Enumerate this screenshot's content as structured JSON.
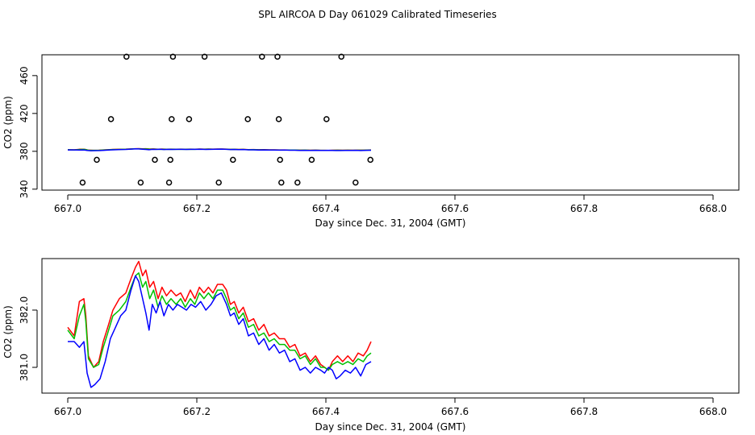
{
  "title": "SPL AIRCOA D  Day 061029  Calibrated Timeseries",
  "chart_data": [
    {
      "type": "scatter+line",
      "xlabel": "Day since Dec. 31, 2004 (GMT)",
      "ylabel": "CO2 (ppm)",
      "xlim": [
        667.0,
        668.0
      ],
      "ylim": [
        339,
        482
      ],
      "xticks": [
        667.0,
        667.2,
        667.4,
        667.6,
        667.8,
        668.0
      ],
      "xtick_labels": [
        "667.0",
        "667.2",
        "667.4",
        "667.6",
        "667.8",
        "668.0"
      ],
      "yticks": [
        340,
        380,
        420,
        460
      ],
      "ytick_labels": [
        "340",
        "380",
        "420",
        "460"
      ],
      "scatter_points": [
        {
          "x": 667.091,
          "y": 480
        },
        {
          "x": 667.163,
          "y": 480
        },
        {
          "x": 667.212,
          "y": 480
        },
        {
          "x": 667.301,
          "y": 480
        },
        {
          "x": 667.325,
          "y": 480
        },
        {
          "x": 667.424,
          "y": 480
        },
        {
          "x": 667.067,
          "y": 414
        },
        {
          "x": 667.161,
          "y": 414
        },
        {
          "x": 667.188,
          "y": 414
        },
        {
          "x": 667.279,
          "y": 414
        },
        {
          "x": 667.327,
          "y": 414
        },
        {
          "x": 667.401,
          "y": 414
        },
        {
          "x": 667.045,
          "y": 371
        },
        {
          "x": 667.135,
          "y": 371
        },
        {
          "x": 667.159,
          "y": 371
        },
        {
          "x": 667.256,
          "y": 371
        },
        {
          "x": 667.329,
          "y": 371
        },
        {
          "x": 667.378,
          "y": 371
        },
        {
          "x": 667.469,
          "y": 371
        },
        {
          "x": 667.023,
          "y": 347
        },
        {
          "x": 667.113,
          "y": 347
        },
        {
          "x": 667.157,
          "y": 347
        },
        {
          "x": 667.234,
          "y": 347
        },
        {
          "x": 667.331,
          "y": 347
        },
        {
          "x": 667.356,
          "y": 347
        },
        {
          "x": 667.446,
          "y": 347
        }
      ],
      "series": [
        {
          "name": "red",
          "color": "#ff0000",
          "values": [
            [
              667.0,
              381.7
            ],
            [
              667.01,
              381.55
            ],
            [
              667.018,
              382.15
            ],
            [
              667.025,
              382.2
            ],
            [
              667.028,
              381.9
            ],
            [
              667.032,
              381.2
            ],
            [
              667.04,
              381.0
            ],
            [
              667.048,
              381.1
            ],
            [
              667.055,
              381.45
            ],
            [
              667.062,
              381.7
            ],
            [
              667.07,
              382.0
            ],
            [
              667.08,
              382.2
            ],
            [
              667.09,
              382.3
            ],
            [
              667.098,
              382.55
            ],
            [
              667.105,
              382.75
            ],
            [
              667.11,
              382.85
            ],
            [
              667.116,
              382.6
            ],
            [
              667.121,
              382.7
            ],
            [
              667.127,
              382.4
            ],
            [
              667.133,
              382.5
            ],
            [
              667.14,
              382.2
            ],
            [
              667.146,
              382.4
            ],
            [
              667.153,
              382.25
            ],
            [
              667.16,
              382.35
            ],
            [
              667.168,
              382.25
            ],
            [
              667.175,
              382.3
            ],
            [
              667.182,
              382.15
            ],
            [
              667.19,
              382.35
            ],
            [
              667.197,
              382.2
            ],
            [
              667.204,
              382.4
            ],
            [
              667.211,
              382.3
            ],
            [
              667.218,
              382.4
            ],
            [
              667.225,
              382.3
            ],
            [
              667.232,
              382.45
            ],
            [
              667.24,
              382.45
            ],
            [
              667.246,
              382.35
            ],
            [
              667.252,
              382.1
            ],
            [
              667.258,
              382.15
            ],
            [
              667.265,
              381.95
            ],
            [
              667.272,
              382.05
            ],
            [
              667.28,
              381.8
            ],
            [
              667.288,
              381.85
            ],
            [
              667.296,
              381.65
            ],
            [
              667.304,
              381.75
            ],
            [
              667.312,
              381.55
            ],
            [
              667.32,
              381.6
            ],
            [
              667.328,
              381.5
            ],
            [
              667.336,
              381.5
            ],
            [
              667.344,
              381.35
            ],
            [
              667.352,
              381.4
            ],
            [
              667.36,
              381.2
            ],
            [
              667.368,
              381.25
            ],
            [
              667.376,
              381.1
            ],
            [
              667.384,
              381.2
            ],
            [
              667.392,
              381.05
            ],
            [
              667.398,
              381.0
            ],
            [
              667.404,
              380.95
            ],
            [
              667.41,
              381.1
            ],
            [
              667.418,
              381.2
            ],
            [
              667.426,
              381.1
            ],
            [
              667.434,
              381.2
            ],
            [
              667.442,
              381.1
            ],
            [
              667.45,
              381.25
            ],
            [
              667.458,
              381.2
            ],
            [
              667.464,
              381.3
            ],
            [
              667.47,
              381.45
            ]
          ]
        },
        {
          "name": "green",
          "color": "#00c000",
          "values": [
            [
              667.0,
              381.65
            ],
            [
              667.01,
              381.5
            ],
            [
              667.018,
              381.9
            ],
            [
              667.025,
              382.1
            ],
            [
              667.028,
              381.8
            ],
            [
              667.032,
              381.15
            ],
            [
              667.04,
              381.0
            ],
            [
              667.048,
              381.05
            ],
            [
              667.055,
              381.35
            ],
            [
              667.062,
              381.6
            ],
            [
              667.07,
              381.9
            ],
            [
              667.08,
              382.0
            ],
            [
              667.09,
              382.15
            ],
            [
              667.098,
              382.4
            ],
            [
              667.105,
              382.6
            ],
            [
              667.11,
              382.65
            ],
            [
              667.116,
              382.4
            ],
            [
              667.121,
              382.5
            ],
            [
              667.127,
              382.2
            ],
            [
              667.133,
              382.35
            ],
            [
              667.14,
              382.05
            ],
            [
              667.146,
              382.25
            ],
            [
              667.153,
              382.1
            ],
            [
              667.16,
              382.2
            ],
            [
              667.168,
              382.1
            ],
            [
              667.175,
              382.2
            ],
            [
              667.182,
              382.05
            ],
            [
              667.19,
              382.2
            ],
            [
              667.197,
              382.1
            ],
            [
              667.204,
              382.3
            ],
            [
              667.211,
              382.2
            ],
            [
              667.218,
              382.3
            ],
            [
              667.225,
              382.2
            ],
            [
              667.232,
              382.35
            ],
            [
              667.24,
              382.35
            ],
            [
              667.246,
              382.2
            ],
            [
              667.252,
              382.0
            ],
            [
              667.258,
              382.05
            ],
            [
              667.265,
              381.85
            ],
            [
              667.272,
              381.95
            ],
            [
              667.28,
              381.7
            ],
            [
              667.288,
              381.75
            ],
            [
              667.296,
              381.55
            ],
            [
              667.304,
              381.6
            ],
            [
              667.312,
              381.45
            ],
            [
              667.32,
              381.5
            ],
            [
              667.328,
              381.4
            ],
            [
              667.336,
              381.4
            ],
            [
              667.344,
              381.3
            ],
            [
              667.352,
              381.3
            ],
            [
              667.36,
              381.15
            ],
            [
              667.368,
              381.2
            ],
            [
              667.376,
              381.05
            ],
            [
              667.384,
              381.15
            ],
            [
              667.392,
              381.0
            ],
            [
              667.398,
              381.0
            ],
            [
              667.404,
              380.95
            ],
            [
              667.41,
              381.05
            ],
            [
              667.418,
              381.1
            ],
            [
              667.426,
              381.05
            ],
            [
              667.434,
              381.1
            ],
            [
              667.442,
              381.05
            ],
            [
              667.45,
              381.15
            ],
            [
              667.458,
              381.1
            ],
            [
              667.464,
              381.2
            ],
            [
              667.47,
              381.25
            ]
          ]
        },
        {
          "name": "blue",
          "color": "#0000ff",
          "values": [
            [
              667.0,
              381.45
            ],
            [
              667.01,
              381.45
            ],
            [
              667.018,
              381.35
            ],
            [
              667.025,
              381.45
            ],
            [
              667.03,
              380.9
            ],
            [
              667.036,
              380.65
            ],
            [
              667.042,
              380.7
            ],
            [
              667.05,
              380.8
            ],
            [
              667.058,
              381.1
            ],
            [
              667.066,
              381.5
            ],
            [
              667.074,
              381.7
            ],
            [
              667.082,
              381.9
            ],
            [
              667.09,
              382.0
            ],
            [
              667.098,
              382.35
            ],
            [
              667.105,
              382.6
            ],
            [
              667.11,
              382.5
            ],
            [
              667.116,
              382.2
            ],
            [
              667.121,
              381.95
            ],
            [
              667.126,
              381.65
            ],
            [
              667.131,
              382.1
            ],
            [
              667.137,
              381.95
            ],
            [
              667.143,
              382.15
            ],
            [
              667.149,
              381.9
            ],
            [
              667.156,
              382.1
            ],
            [
              667.163,
              382.0
            ],
            [
              667.17,
              382.1
            ],
            [
              667.177,
              382.05
            ],
            [
              667.184,
              382.0
            ],
            [
              667.191,
              382.1
            ],
            [
              667.198,
              382.05
            ],
            [
              667.206,
              382.15
            ],
            [
              667.214,
              382.0
            ],
            [
              667.222,
              382.1
            ],
            [
              667.23,
              382.25
            ],
            [
              667.238,
              382.3
            ],
            [
              667.246,
              382.1
            ],
            [
              667.252,
              381.9
            ],
            [
              667.258,
              381.95
            ],
            [
              667.265,
              381.75
            ],
            [
              667.272,
              381.85
            ],
            [
              667.28,
              381.55
            ],
            [
              667.288,
              381.6
            ],
            [
              667.296,
              381.4
            ],
            [
              667.304,
              381.5
            ],
            [
              667.312,
              381.3
            ],
            [
              667.32,
              381.4
            ],
            [
              667.328,
              381.25
            ],
            [
              667.336,
              381.3
            ],
            [
              667.344,
              381.1
            ],
            [
              667.352,
              381.15
            ],
            [
              667.36,
              380.95
            ],
            [
              667.368,
              381.0
            ],
            [
              667.376,
              380.9
            ],
            [
              667.384,
              381.0
            ],
            [
              667.392,
              380.95
            ],
            [
              667.398,
              380.9
            ],
            [
              667.404,
              381.0
            ],
            [
              667.41,
              380.95
            ],
            [
              667.416,
              380.8
            ],
            [
              667.422,
              380.85
            ],
            [
              667.43,
              380.95
            ],
            [
              667.438,
              380.9
            ],
            [
              667.446,
              381.0
            ],
            [
              667.454,
              380.85
            ],
            [
              667.462,
              381.05
            ],
            [
              667.47,
              381.1
            ]
          ]
        }
      ]
    },
    {
      "type": "line",
      "xlabel": "Day since Dec. 31, 2004 (GMT)",
      "ylabel": "CO2 (ppm)",
      "xlim": [
        667.0,
        668.0
      ],
      "ylim": [
        380.55,
        382.9
      ],
      "xticks": [
        667.0,
        667.2,
        667.4,
        667.6,
        667.8,
        668.0
      ],
      "xtick_labels": [
        "667.0",
        "667.2",
        "667.4",
        "667.6",
        "667.8",
        "668.0"
      ],
      "yticks": [
        381.0,
        382.0
      ],
      "ytick_labels": [
        "381.0",
        "382.0"
      ],
      "series_ref": "same as panel 1 line series"
    }
  ]
}
